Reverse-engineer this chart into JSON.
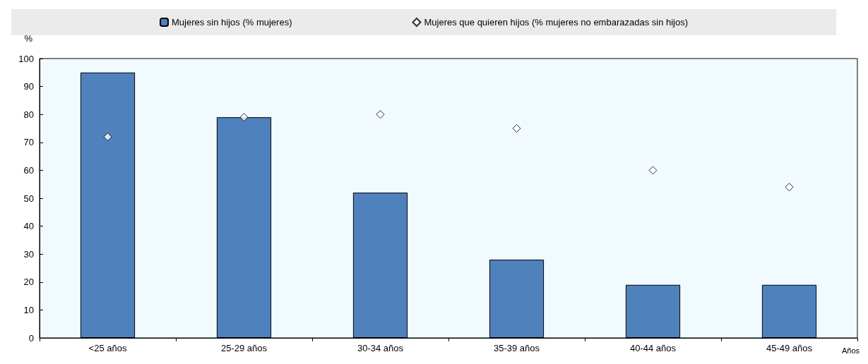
{
  "chart_data": {
    "type": "bar",
    "ylabel": "%",
    "xlabel": "Años",
    "categories": [
      "<25 años",
      "25-29 años",
      "30-34 años",
      "35-39 años",
      "40-44 años",
      "45-49 años"
    ],
    "series": [
      {
        "name": "Mujeres sin hijos (% mujeres)",
        "color": "#4f81bd",
        "values": [
          95,
          79,
          52,
          28,
          19,
          19
        ]
      },
      {
        "name": "Mujeres que quieren hijos (% mujeres no embarazadas sin hijos)",
        "type": "scatter",
        "color": "#ffffff",
        "marker": "diamond",
        "values": [
          72,
          79,
          80,
          75,
          60,
          54
        ]
      }
    ],
    "ylim": [
      0,
      100
    ],
    "yticks": [
      0,
      10,
      20,
      30,
      40,
      50,
      60,
      70,
      80,
      90,
      100
    ],
    "grid": false,
    "legend": "top"
  }
}
